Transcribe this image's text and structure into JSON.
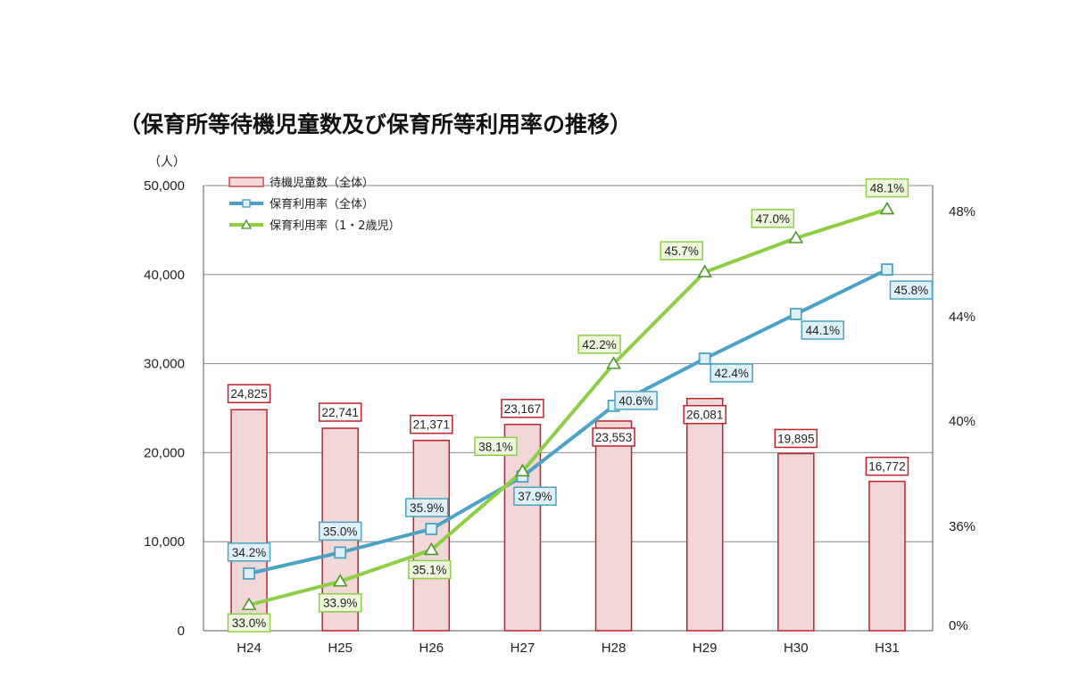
{
  "chart_data": {
    "type": "bar",
    "title": "（保育所等待機児童数及び保育所等利用率の推移）",
    "y_unit": "（人）",
    "categories": [
      "H24",
      "H25",
      "H26",
      "H27",
      "H28",
      "H29",
      "H30",
      "H31"
    ],
    "ylim": [
      0,
      50000
    ],
    "y_ticks": [
      "0",
      "10,000",
      "20,000",
      "30,000",
      "40,000",
      "50,000"
    ],
    "y2_ticks": [
      "0%",
      "36%",
      "40%",
      "44%",
      "48%"
    ],
    "y2_scale_note": "right axis shows 36%–48% at uniform spacing; 0% at baseline (broken axis)",
    "grid": true,
    "legend_position": "top-left",
    "series": [
      {
        "name": "待機児童数（全体）",
        "type": "bar",
        "axis": "left",
        "values": [
          24825,
          22741,
          21371,
          23167,
          23553,
          26081,
          19895,
          16772
        ],
        "labels": [
          "24,825",
          "22,741",
          "21,371",
          "23,167",
          "23,553",
          "26,081",
          "19,895",
          "16,772"
        ],
        "fill": "#f2d7d9",
        "stroke": "#c0202a"
      },
      {
        "name": "保育利用率（全体）",
        "type": "line",
        "axis": "right",
        "marker": "square",
        "values": [
          34.2,
          35.0,
          35.9,
          37.9,
          40.6,
          42.4,
          44.1,
          45.8
        ],
        "labels": [
          "34.2%",
          "35.0%",
          "35.9%",
          "37.9%",
          "40.6%",
          "42.4%",
          "44.1%",
          "45.8%"
        ],
        "color": "#4aa3c6",
        "label_fill": "#dff0f8"
      },
      {
        "name": "保育利用率（1・2歳児）",
        "type": "line",
        "axis": "right",
        "marker": "triangle",
        "values": [
          33.0,
          33.9,
          35.1,
          38.1,
          42.2,
          45.7,
          47.0,
          48.1
        ],
        "labels": [
          "33.0%",
          "33.9%",
          "35.1%",
          "38.1%",
          "42.2%",
          "45.7%",
          "47.0%",
          "48.1%"
        ],
        "color": "#8ccf45",
        "label_fill": "#eef7de"
      }
    ]
  }
}
